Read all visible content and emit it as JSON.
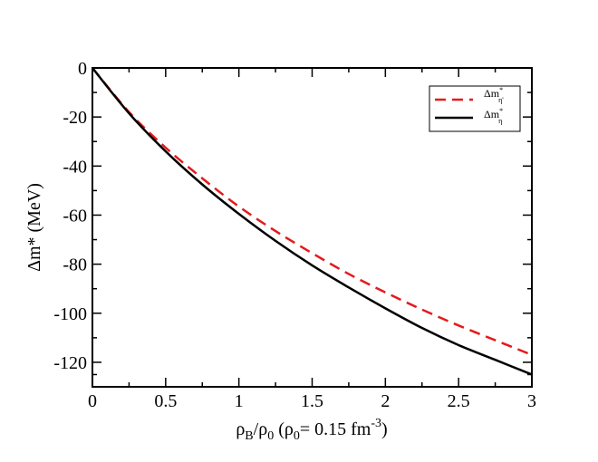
{
  "chart_data": {
    "type": "line",
    "title": "",
    "xlabel": {
      "rho": "ρ",
      "sub_b": "B",
      "slash": "/",
      "sub_0": "0",
      "paren_open": " (",
      "rho0_sub": "0",
      "eq": "= 0.15 fm",
      "exp": "-3",
      "paren_close": ")"
    },
    "ylabel": "Δm* (MeV)",
    "xlim": [
      0,
      3
    ],
    "ylim": [
      -130,
      0
    ],
    "xticks": [
      0,
      0.5,
      1,
      1.5,
      2,
      2.5,
      3
    ],
    "xtick_labels": [
      "0",
      "0.5",
      "1",
      "1.5",
      "2",
      "2.5",
      "3"
    ],
    "yticks": [
      0,
      -20,
      -40,
      -60,
      -80,
      -100,
      -120
    ],
    "ytick_labels": [
      "0",
      "-20",
      "-40",
      "-60",
      "-80",
      "-100",
      "-120"
    ],
    "legend_position": "top-right",
    "grid": false,
    "series": [
      {
        "legend_main": "Δm",
        "legend_sup": "*",
        "legend_sub": "η'",
        "color": "#e41a1c",
        "dash": "dashed",
        "x": [
          0,
          0.25,
          0.5,
          0.75,
          1.0,
          1.25,
          1.5,
          1.75,
          2.0,
          2.25,
          2.5,
          2.75,
          3.0
        ],
        "y": [
          0,
          -18,
          -32.5,
          -45,
          -56.5,
          -66.5,
          -75.5,
          -84,
          -91.5,
          -98.5,
          -105,
          -111,
          -117
        ]
      },
      {
        "legend_main": "Δm",
        "legend_sup": "*",
        "legend_sub": "η",
        "color": "#000000",
        "dash": "solid",
        "x": [
          0,
          0.25,
          0.5,
          0.75,
          1.0,
          1.25,
          1.5,
          1.75,
          2.0,
          2.25,
          2.5,
          2.75,
          3.0
        ],
        "y": [
          0,
          -18.5,
          -34,
          -47.5,
          -59.5,
          -70.5,
          -80.5,
          -89.5,
          -98,
          -106,
          -113,
          -119,
          -125
        ]
      }
    ]
  }
}
